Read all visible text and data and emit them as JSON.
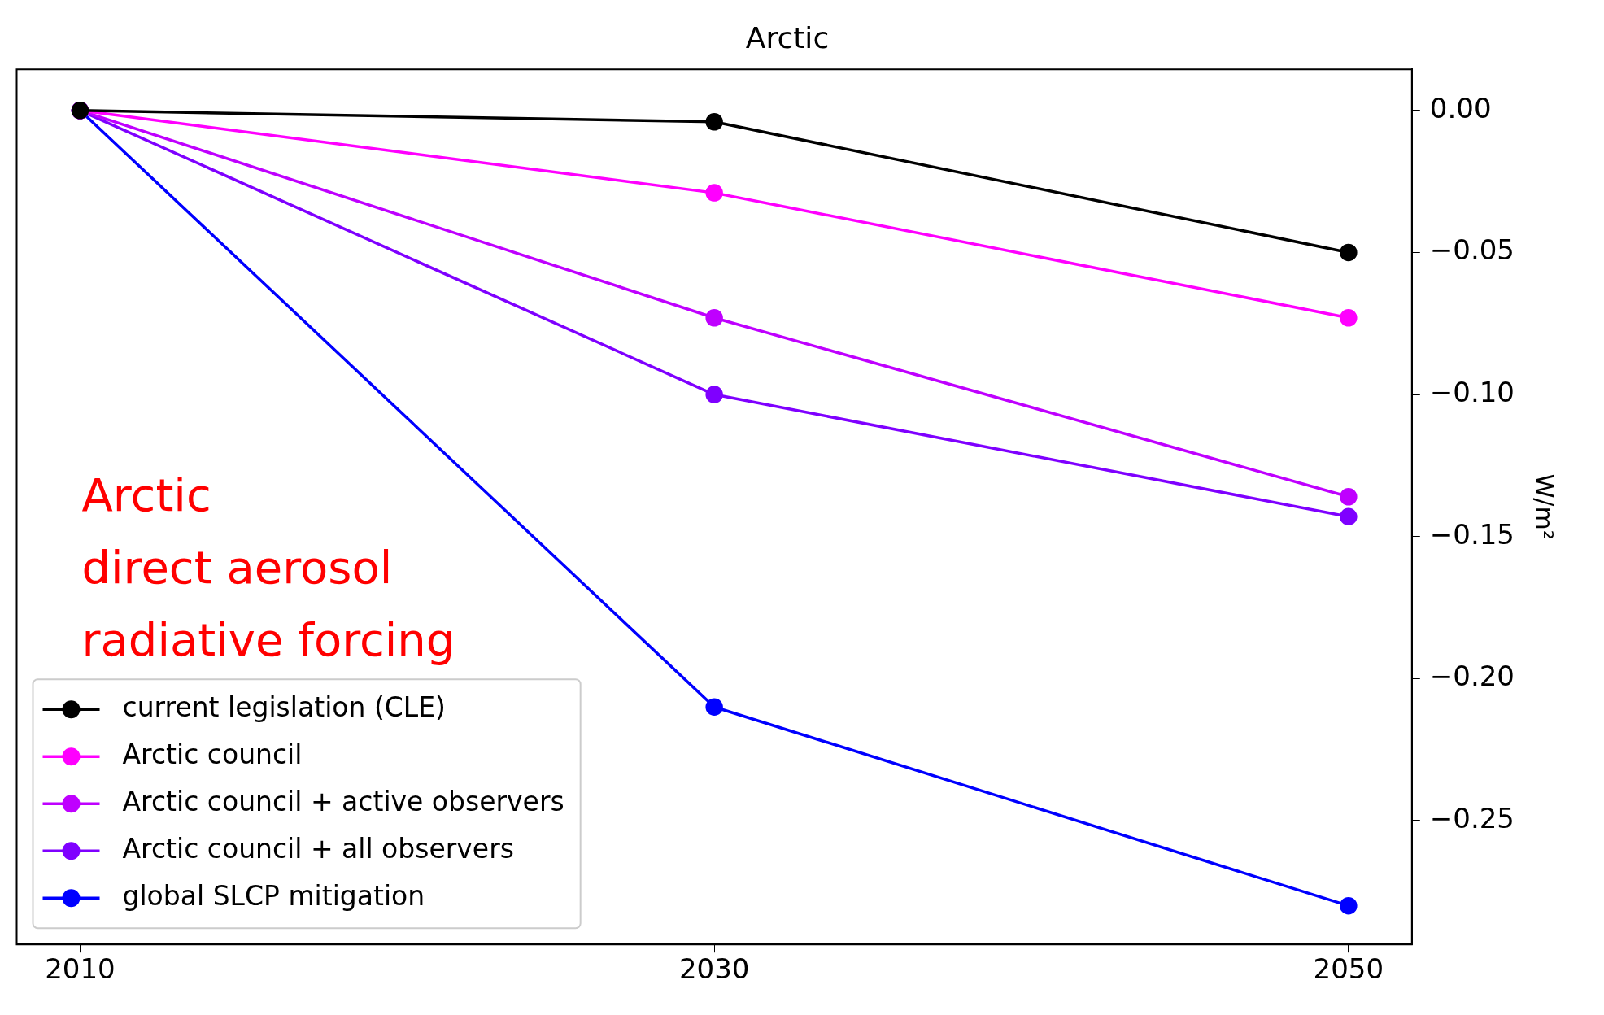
{
  "chart_data": {
    "type": "line",
    "title": "Arctic",
    "ylabel": "W/m²",
    "x": [
      2010,
      2030,
      2050
    ],
    "xlim": [
      2008,
      2052
    ],
    "xticks": [
      2010,
      2030,
      2050
    ],
    "ylim": [
      -0.2936,
      0.0145
    ],
    "yticks": [
      {
        "value": 0,
        "label": "0.00"
      },
      {
        "value": -0.05,
        "label": "−0.05"
      },
      {
        "value": -0.1,
        "label": "−0.10"
      },
      {
        "value": -0.15,
        "label": "−0.15"
      },
      {
        "value": -0.2,
        "label": "−0.20"
      },
      {
        "value": -0.25,
        "label": "−0.25"
      }
    ],
    "series": [
      {
        "name": "current legislation (CLE)",
        "color": "#000000",
        "values": [
          0,
          -0.004,
          -0.05
        ]
      },
      {
        "name": "Arctic council",
        "color": "#ff00ff",
        "values": [
          0,
          -0.029,
          -0.073
        ]
      },
      {
        "name": "Arctic council + active observers",
        "color": "#bf00ff",
        "values": [
          0,
          -0.073,
          -0.136
        ]
      },
      {
        "name": "Arctic council + all observers",
        "color": "#7f00ff",
        "values": [
          0,
          -0.1,
          -0.143
        ]
      },
      {
        "name": "global SLCP mitigation",
        "color": "#0000ff",
        "values": [
          0,
          -0.21,
          -0.28
        ]
      }
    ],
    "annotations": [
      "Arctic\ndirect aerosol\nradiative forcing"
    ],
    "legend": "bottom left",
    "marker": "circle",
    "line_style": "solid",
    "grid": false
  }
}
